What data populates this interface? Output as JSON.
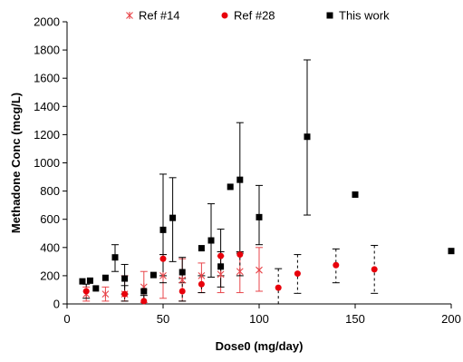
{
  "chart_data": {
    "type": "scatter",
    "xlabel": "Dose0 (mg/day)",
    "ylabel": "Methadone Conc (mcg/L)",
    "xlim": [
      0,
      200
    ],
    "ylim": [
      0,
      2000
    ],
    "x_ticks": [
      0,
      50,
      100,
      150,
      200
    ],
    "y_ticks": [
      0,
      200,
      400,
      600,
      800,
      1000,
      1200,
      1400,
      1600,
      1800,
      2000
    ],
    "legend_position": "top",
    "grid": false,
    "series": [
      {
        "name": "Ref #14",
        "marker": "asterisk",
        "color": "#e8464b",
        "error_bar_color": "#e8464b",
        "error_bar_style": "solid",
        "points": [
          {
            "x": 10,
            "y": 70,
            "lo": 20,
            "hi": 120
          },
          {
            "x": 20,
            "y": 70,
            "lo": 20,
            "hi": 120
          },
          {
            "x": 30,
            "y": 70,
            "lo": 20,
            "hi": 200
          },
          {
            "x": 40,
            "y": 120,
            "lo": 10,
            "hi": 230
          },
          {
            "x": 50,
            "y": 200,
            "lo": 40,
            "hi": 350
          },
          {
            "x": 60,
            "y": 170,
            "lo": 20,
            "hi": 320
          },
          {
            "x": 70,
            "y": 200,
            "lo": 80,
            "hi": 290
          },
          {
            "x": 80,
            "y": 210,
            "lo": 80,
            "hi": 340
          },
          {
            "x": 90,
            "y": 230,
            "lo": 80,
            "hi": 370
          },
          {
            "x": 100,
            "y": 240,
            "lo": 90,
            "hi": 400
          }
        ]
      },
      {
        "name": "Ref #28",
        "marker": "circle",
        "color": "#e8000b",
        "error_bar_color": "#000000",
        "error_bar_style": "dashed",
        "points": [
          {
            "x": 10,
            "y": 90,
            "lo": 40,
            "hi": 140
          },
          {
            "x": 30,
            "y": 70,
            "lo": 20,
            "hi": 130
          },
          {
            "x": 40,
            "y": 20,
            "lo": 0,
            "hi": 60
          },
          {
            "x": 50,
            "y": 320,
            "lo": 150,
            "hi": 350
          },
          {
            "x": 60,
            "y": 90,
            "lo": 20,
            "hi": 180
          },
          {
            "x": 70,
            "y": 140,
            "lo": 80,
            "hi": 200
          },
          {
            "x": 80,
            "y": 340,
            "lo": 200,
            "hi": 370
          },
          {
            "x": 90,
            "y": 350,
            "lo": 200,
            "hi": 370
          },
          {
            "x": 110,
            "y": 115,
            "lo": 0,
            "hi": 250
          },
          {
            "x": 120,
            "y": 215,
            "lo": 75,
            "hi": 350
          },
          {
            "x": 140,
            "y": 275,
            "lo": 150,
            "hi": 390
          },
          {
            "x": 160,
            "y": 245,
            "lo": 75,
            "hi": 415
          }
        ]
      },
      {
        "name": "This work",
        "marker": "square",
        "color": "#000000",
        "error_bar_color": "#000000",
        "error_bar_style": "solid",
        "points": [
          {
            "x": 8,
            "y": 160
          },
          {
            "x": 12,
            "y": 165
          },
          {
            "x": 15,
            "y": 110
          },
          {
            "x": 20,
            "y": 185
          },
          {
            "x": 25,
            "y": 330,
            "lo": 230,
            "hi": 420
          },
          {
            "x": 30,
            "y": 180,
            "lo": 70,
            "hi": 280
          },
          {
            "x": 40,
            "y": 90
          },
          {
            "x": 45,
            "y": 205
          },
          {
            "x": 50,
            "y": 525,
            "lo": 200,
            "hi": 920
          },
          {
            "x": 55,
            "y": 610,
            "lo": 300,
            "hi": 895
          },
          {
            "x": 60,
            "y": 225,
            "lo": 150,
            "hi": 330
          },
          {
            "x": 70,
            "y": 395
          },
          {
            "x": 75,
            "y": 450,
            "lo": 190,
            "hi": 710
          },
          {
            "x": 80,
            "y": 265,
            "lo": 120,
            "hi": 530
          },
          {
            "x": 85,
            "y": 830
          },
          {
            "x": 90,
            "y": 880,
            "lo": 360,
            "hi": 1285
          },
          {
            "x": 100,
            "y": 615,
            "lo": 420,
            "hi": 840
          },
          {
            "x": 125,
            "y": 1185,
            "lo": 630,
            "hi": 1730
          },
          {
            "x": 150,
            "y": 775
          },
          {
            "x": 200,
            "y": 375
          }
        ]
      }
    ]
  }
}
